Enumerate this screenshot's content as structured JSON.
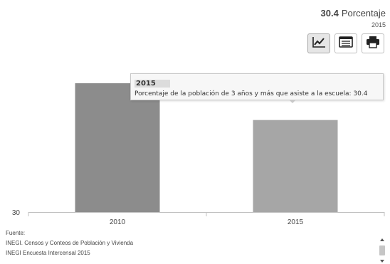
{
  "headline": {
    "value": "30.4",
    "unit": "Porcentaje",
    "year": "2015"
  },
  "toolbar": {
    "icons": [
      "line-chart-icon",
      "table-icon",
      "print-icon"
    ],
    "active": "line-chart-icon"
  },
  "tooltip": {
    "title": "2015",
    "body": "Porcentaje de la población de 3 años y más que asiste a la escuela: 30.4"
  },
  "chart_data": {
    "type": "bar",
    "categories": [
      "2010",
      "2015"
    ],
    "values": [
      30.56,
      30.4
    ],
    "ylim": [
      30,
      30.6
    ],
    "yticks": [
      "30"
    ],
    "bar_colors": [
      "#8c8c8c",
      "#a6a6a6"
    ],
    "grid": false
  },
  "sources": {
    "label": "Fuente:",
    "items": [
      "INEGI. Censos y Conteos de Población y Vivienda",
      "INEGI Encuesta Intercensal 2015"
    ]
  }
}
